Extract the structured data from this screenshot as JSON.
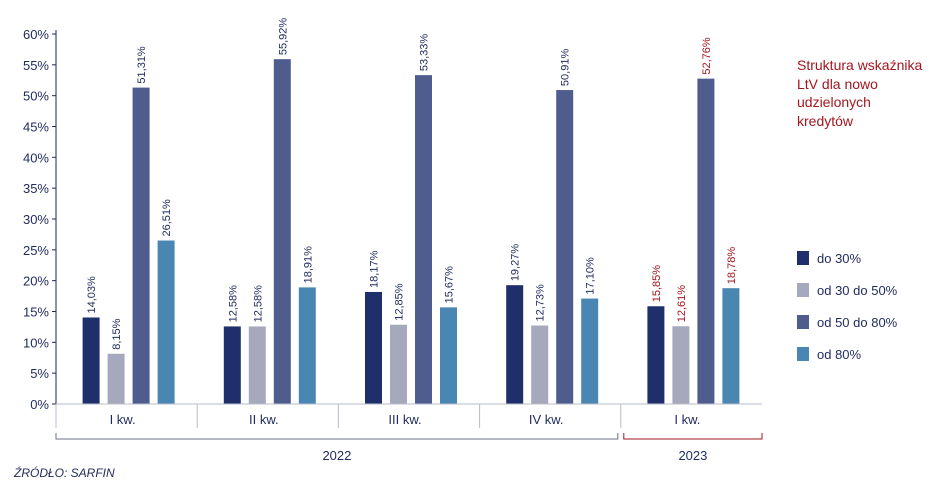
{
  "chart_data": {
    "type": "bar",
    "categories": [
      "I kw.",
      "II kw.",
      "III kw.",
      "IV kw.",
      "I kw."
    ],
    "years": [
      {
        "label": "2022",
        "from": 0,
        "to": 3,
        "color": "#6b6f86"
      },
      {
        "label": "2023",
        "from": 4,
        "to": 4,
        "color": "#a3161f"
      }
    ],
    "series": [
      {
        "name": "do 30%",
        "color": "#1e2f6b",
        "values": [
          14.03,
          12.58,
          18.17,
          19.27,
          15.85
        ],
        "labels": [
          "14,03%",
          "12,58%",
          "18,17%",
          "19,27%",
          "15,85%"
        ]
      },
      {
        "name": "od 30 do 50%",
        "color": "#a6a9bd",
        "values": [
          8.15,
          12.58,
          12.85,
          12.73,
          12.61
        ],
        "labels": [
          "8,15%",
          "12,58%",
          "12,85%",
          "12,73%",
          "12,61%"
        ]
      },
      {
        "name": "od 50 do 80%",
        "color": "#4f5c8e",
        "values": [
          51.31,
          55.92,
          53.33,
          50.91,
          52.76
        ],
        "labels": [
          "51,31%",
          "55,92%",
          "53,33%",
          "50,91%",
          "52,76%"
        ]
      },
      {
        "name": "od 80%",
        "color": "#4a86b2",
        "values": [
          26.51,
          18.91,
          15.67,
          17.1,
          18.78
        ],
        "labels": [
          "26,51%",
          "18,91%",
          "15,67%",
          "17,10%",
          "18,78%"
        ]
      }
    ],
    "label_colors": [
      "#1f2a5c",
      "#1f2a5c",
      "#1f2a5c",
      "#1f2a5c",
      "#a3161f"
    ],
    "yticks": [
      "0%",
      "5%",
      "10%",
      "15%",
      "20%",
      "25%",
      "30%",
      "35%",
      "40%",
      "45%",
      "50%",
      "55%",
      "60%"
    ],
    "ylim": [
      0,
      60
    ],
    "grid": false,
    "legend_position": "right",
    "legend_title": "Struktura wskaźnika LtV dla nowo udzielonych kredytów"
  },
  "source": "ŹRÓDŁO: SARFIN"
}
